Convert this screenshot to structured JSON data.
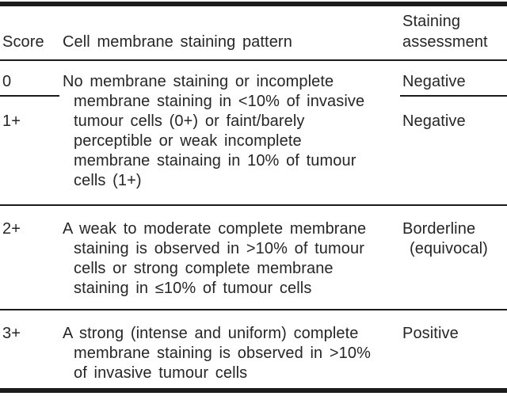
{
  "table": {
    "title_semantic": "Cell membrane staining score table",
    "colors": {
      "rule": "#1b1b1b",
      "text": "#262626",
      "background": "#ffffff"
    },
    "header": {
      "score": "Score",
      "pattern": "Cell membrane staining pattern",
      "assessment": "Staining\nassessment"
    },
    "sections": [
      {
        "scores": [
          "0",
          "1+"
        ],
        "pattern": "No membrane staining or incomplete\nmembrane staining in <10% of invasive\ntumour cells (0+) or faint/barely\nperceptible or weak incomplete\nmembrane stainaing in 10% of tumour\ncells (1+)",
        "assessments": [
          "Negative",
          "Negative"
        ]
      },
      {
        "score": "2+",
        "pattern": "A weak to moderate complete membrane\nstaining is observed in >10% of tumour\ncells or strong complete membrane\nstaining in ≤10% of tumour cells",
        "assessment": "Borderline\n(equivocal)"
      },
      {
        "score": "3+",
        "pattern": "A strong (intense and uniform) complete\nmembrane staining is observed in >10%\nof invasive tumour cells",
        "assessment": "Positive"
      }
    ]
  }
}
